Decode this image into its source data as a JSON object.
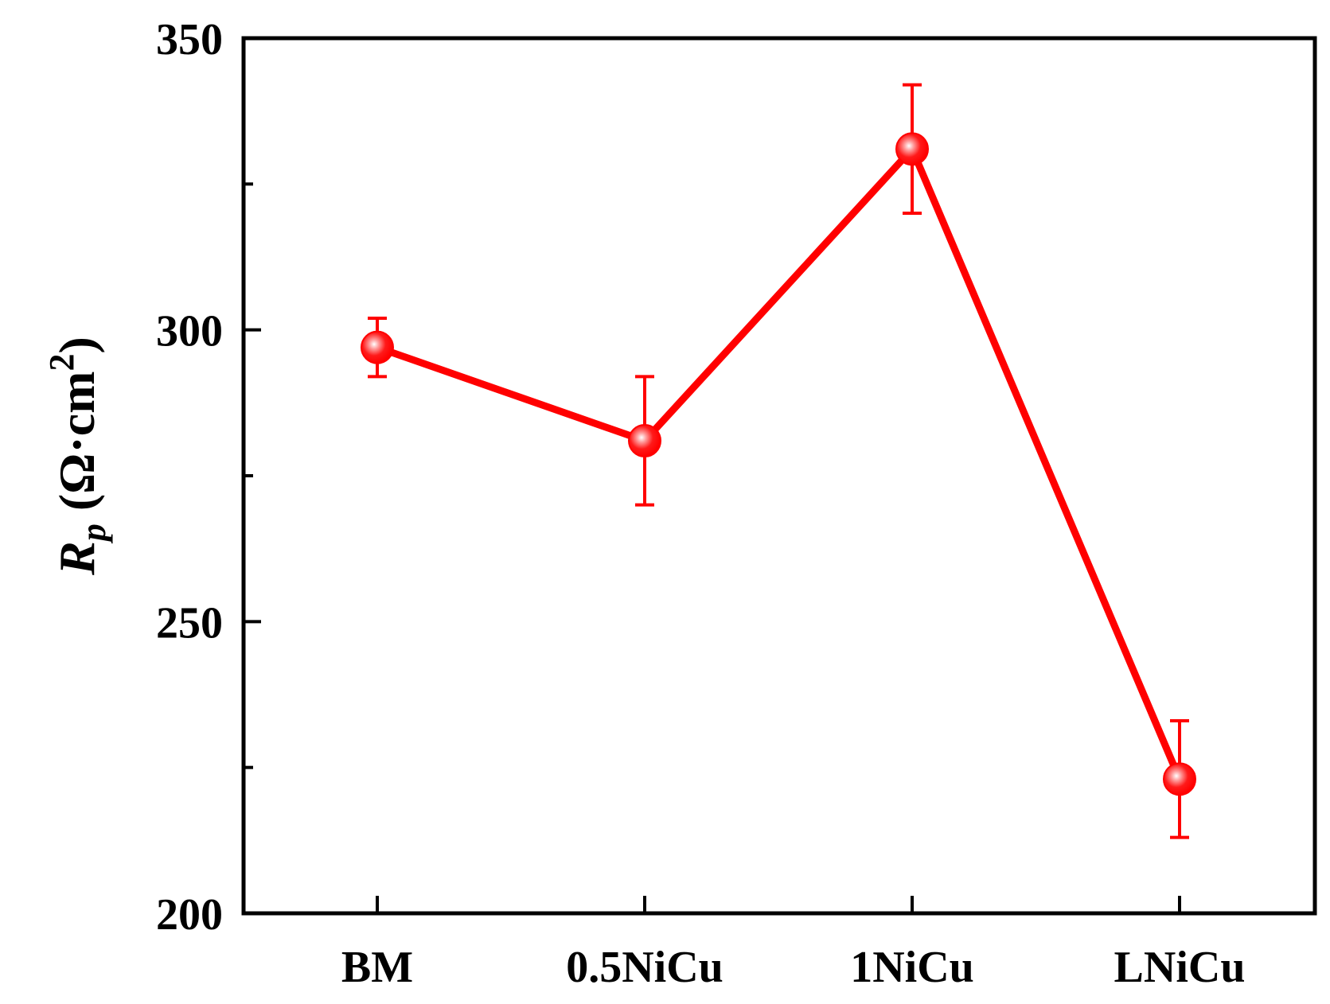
{
  "chart_data": {
    "type": "line",
    "title": "",
    "xlabel": "",
    "ylabel": {
      "symbol": "R",
      "subscript": "p",
      "unit_open": " (Ω·cm",
      "unit_sup": "2",
      "unit_close": ")"
    },
    "categories": [
      "BM",
      "0.5NiCu",
      "1NiCu",
      "LNiCu"
    ],
    "series": [
      {
        "values": [
          297,
          281,
          331,
          223
        ],
        "error": [
          5,
          11,
          11,
          10
        ],
        "color": "#ff0000"
      }
    ],
    "ylim": [
      200,
      350
    ],
    "yticks_major": [
      200,
      250,
      300,
      350
    ],
    "yticks_minor": [
      225,
      275,
      325
    ],
    "grid": false,
    "legend": "none"
  }
}
